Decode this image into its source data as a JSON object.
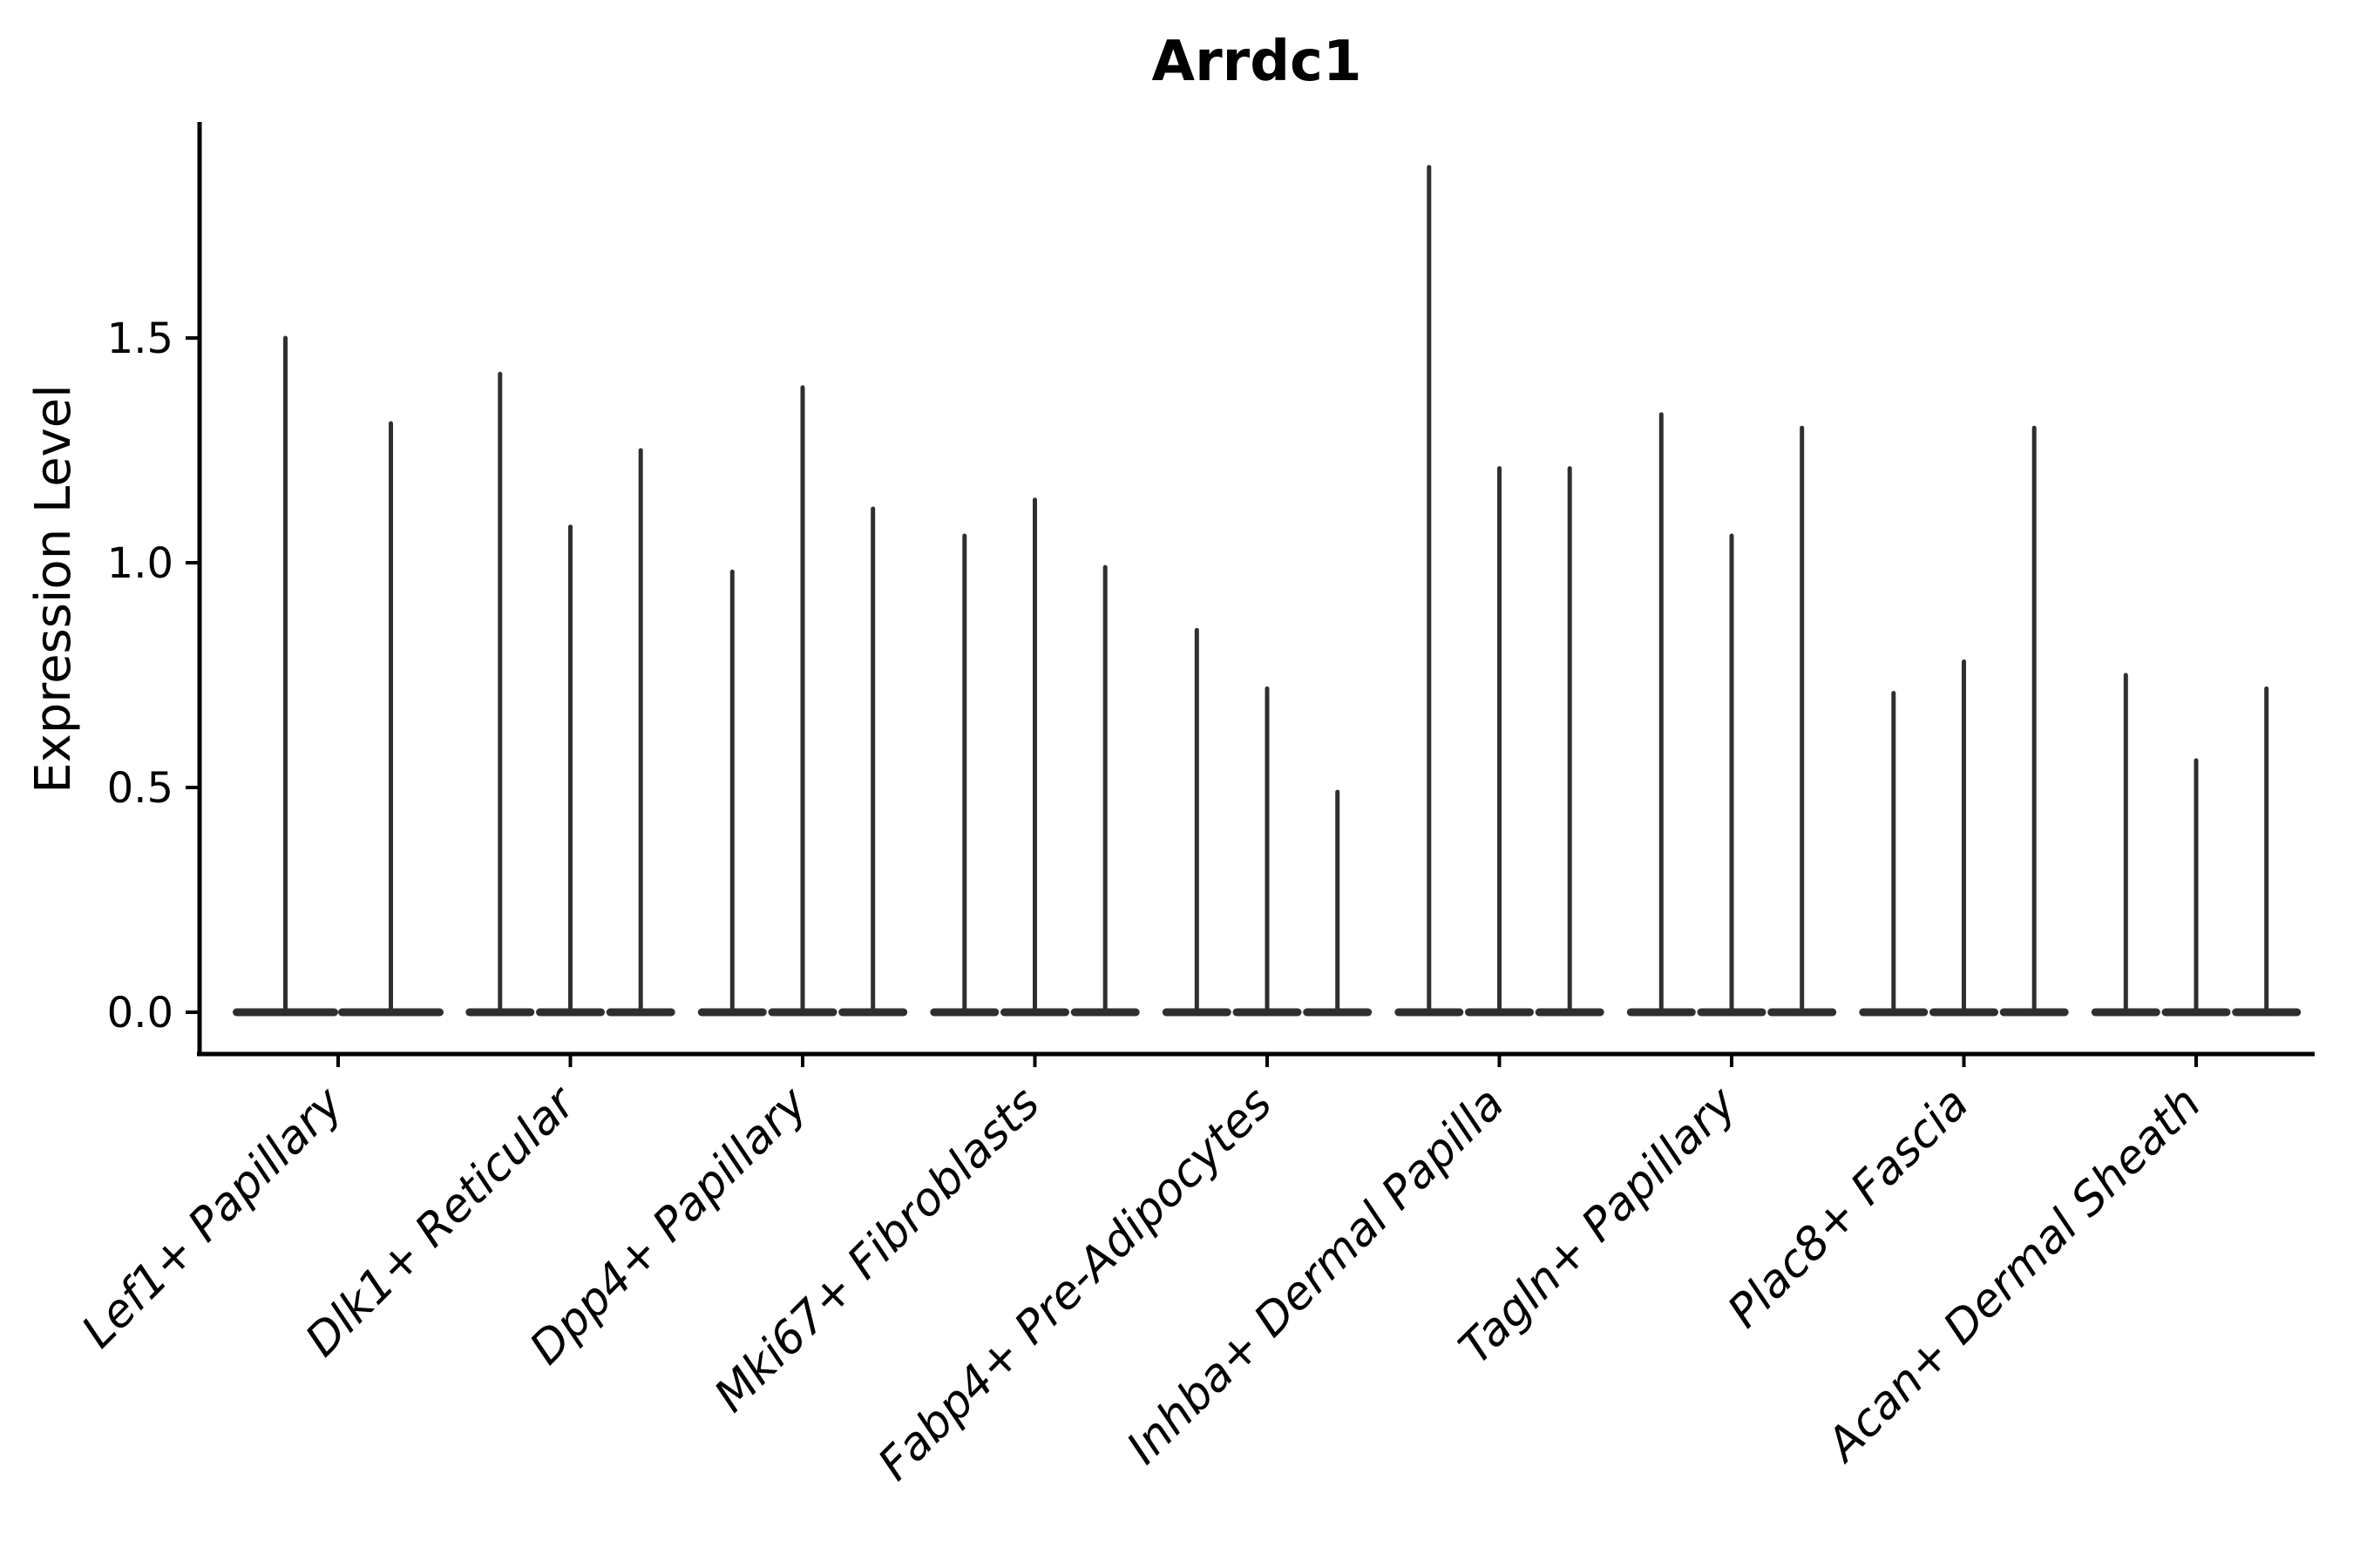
{
  "title": "Arrdc1",
  "axes": {
    "y_label": "Expression Level",
    "y_tick_labels": [
      "0.0",
      "0.5",
      "1.0",
      "1.5"
    ]
  },
  "colors": {
    "violin": "#2f2f2f",
    "axis": "#000000",
    "text": "#000000",
    "background": "#ffffff"
  },
  "chart_data": {
    "type": "violin",
    "title": "Arrdc1",
    "xlabel": "",
    "ylabel": "Expression Level",
    "ylim": [
      -0.09,
      1.98
    ],
    "y_ticks": [
      0.0,
      0.5,
      1.0,
      1.5
    ],
    "grid": false,
    "legend": "none",
    "shape_note": "Each violin is collapsed at 0 (flat lens-shaped body on the baseline) with a thin vertical tail rising to the per-violin maximum expression value",
    "categories": [
      "Lef1+ Papillary",
      "Dlk1+ Reticular",
      "Dpp4+ Papillary",
      "Mki67+ Fibroblasts",
      "Fabp4+ Pre-Adipocytes",
      "Inhba+ Dermal Papilla",
      "Tagln+ Papillary",
      "Plac8+ Fascia",
      "Acan+ Dermal Sheath"
    ],
    "groups": [
      {
        "category": "Lef1+ Papillary",
        "violin_max": [
          1.5,
          1.31
        ]
      },
      {
        "category": "Dlk1+ Reticular",
        "violin_max": [
          1.42,
          1.08,
          1.25
        ]
      },
      {
        "category": "Dpp4+ Papillary",
        "violin_max": [
          0.98,
          1.39,
          1.12
        ]
      },
      {
        "category": "Mki67+ Fibroblasts",
        "violin_max": [
          1.06,
          1.14,
          0.99
        ]
      },
      {
        "category": "Fabp4+ Pre-Adipocytes",
        "violin_max": [
          0.85,
          0.72,
          0.49
        ]
      },
      {
        "category": "Inhba+ Dermal Papilla",
        "violin_max": [
          1.88,
          1.21,
          1.21
        ]
      },
      {
        "category": "Tagln+ Papillary",
        "violin_max": [
          1.33,
          1.06,
          1.3
        ]
      },
      {
        "category": "Plac8+ Fascia",
        "violin_max": [
          0.71,
          0.78,
          1.3
        ]
      },
      {
        "category": "Acan+ Dermal Sheath",
        "violin_max": [
          0.75,
          0.56,
          0.72
        ]
      }
    ]
  }
}
